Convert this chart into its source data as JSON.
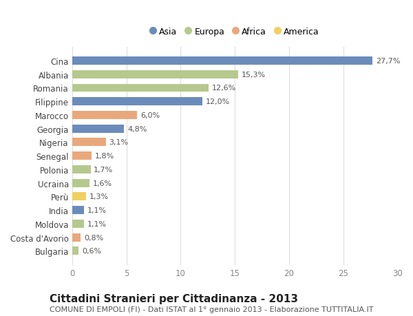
{
  "countries": [
    "Cina",
    "Albania",
    "Romania",
    "Filippine",
    "Marocco",
    "Georgia",
    "Nigeria",
    "Senegal",
    "Polonia",
    "Ucraina",
    "Perù",
    "India",
    "Moldova",
    "Costa d'Avorio",
    "Bulgaria"
  ],
  "values": [
    27.7,
    15.3,
    12.6,
    12.0,
    6.0,
    4.8,
    3.1,
    1.8,
    1.7,
    1.6,
    1.3,
    1.1,
    1.1,
    0.8,
    0.6
  ],
  "labels": [
    "27,7%",
    "15,3%",
    "12,6%",
    "12,0%",
    "6,0%",
    "4,8%",
    "3,1%",
    "1,8%",
    "1,7%",
    "1,6%",
    "1,3%",
    "1,1%",
    "1,1%",
    "0,8%",
    "0,6%"
  ],
  "continents": [
    "Asia",
    "Europa",
    "Europa",
    "Asia",
    "Africa",
    "Asia",
    "Africa",
    "Africa",
    "Europa",
    "Europa",
    "America",
    "Asia",
    "Europa",
    "Africa",
    "Europa"
  ],
  "continent_colors": {
    "Asia": "#6b8cba",
    "Europa": "#b5c98e",
    "Africa": "#e8a87c",
    "America": "#f0d060"
  },
  "legend_order": [
    "Asia",
    "Europa",
    "Africa",
    "America"
  ],
  "title": "Cittadini Stranieri per Cittadinanza - 2013",
  "subtitle": "COMUNE DI EMPOLI (FI) - Dati ISTAT al 1° gennaio 2013 - Elaborazione TUTTITALIA.IT",
  "xlim": [
    0,
    30
  ],
  "xticks": [
    0,
    5,
    10,
    15,
    20,
    25,
    30
  ],
  "background_color": "#ffffff",
  "grid_color": "#dddddd",
  "bar_height": 0.6,
  "title_fontsize": 11,
  "subtitle_fontsize": 8,
  "label_fontsize": 8,
  "tick_fontsize": 8.5,
  "legend_fontsize": 9
}
